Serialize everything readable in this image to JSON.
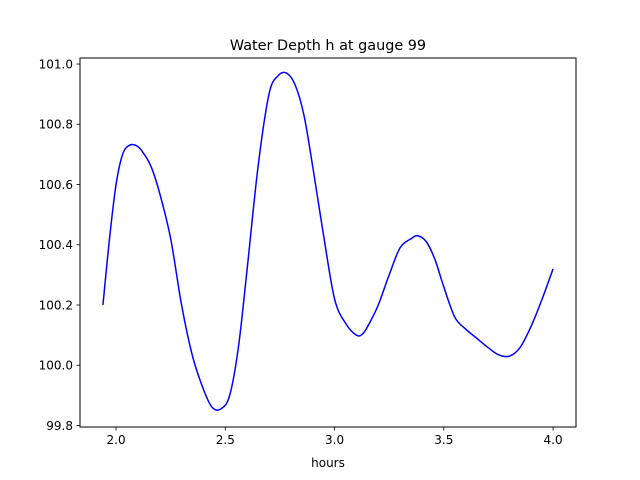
{
  "chart_data": {
    "type": "line",
    "title": "Water Depth h at gauge 99",
    "xlabel": "hours",
    "ylabel": "",
    "xlim": [
      1.835,
      4.105
    ],
    "ylim": [
      99.795,
      101.02
    ],
    "xticks": [
      2.0,
      2.5,
      3.0,
      3.5,
      4.0
    ],
    "xtick_labels": [
      "2.0",
      "2.5",
      "3.0",
      "3.5",
      "4.0"
    ],
    "yticks": [
      99.8,
      100.0,
      100.2,
      100.4,
      100.6,
      100.8,
      101.0
    ],
    "ytick_labels": [
      "99.8",
      "100.0",
      "100.2",
      "100.4",
      "100.6",
      "100.8",
      "101.0"
    ],
    "grid": false,
    "legend": "none",
    "series": [
      {
        "color": "#0000ff",
        "x": [
          1.94,
          1.97,
          2.0,
          2.03,
          2.06,
          2.09,
          2.12,
          2.16,
          2.2,
          2.25,
          2.3,
          2.35,
          2.4,
          2.44,
          2.48,
          2.52,
          2.56,
          2.6,
          2.65,
          2.7,
          2.74,
          2.78,
          2.82,
          2.86,
          2.9,
          2.95,
          3.0,
          3.05,
          3.1,
          3.13,
          3.16,
          3.2,
          3.25,
          3.3,
          3.35,
          3.38,
          3.42,
          3.46,
          3.5,
          3.55,
          3.6,
          3.65,
          3.7,
          3.75,
          3.8,
          3.85,
          3.9,
          3.95,
          4.0
        ],
        "y": [
          100.2,
          100.42,
          100.6,
          100.7,
          100.73,
          100.73,
          100.71,
          100.66,
          100.57,
          100.42,
          100.2,
          100.03,
          99.92,
          99.86,
          99.855,
          99.9,
          100.06,
          100.32,
          100.66,
          100.9,
          100.96,
          100.97,
          100.93,
          100.83,
          100.66,
          100.43,
          100.22,
          100.14,
          100.1,
          100.105,
          100.14,
          100.2,
          100.3,
          100.39,
          100.42,
          100.43,
          100.41,
          100.35,
          100.26,
          100.16,
          100.12,
          100.09,
          100.06,
          100.035,
          100.03,
          100.06,
          100.13,
          100.22,
          100.32
        ]
      }
    ]
  }
}
